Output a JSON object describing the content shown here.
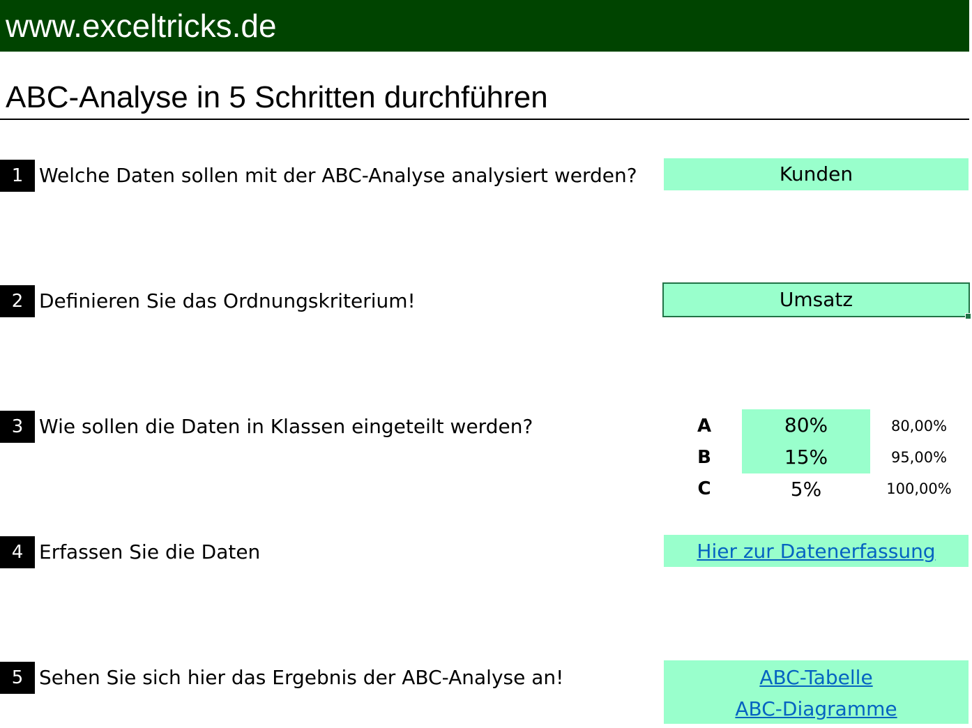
{
  "banner": {
    "text": "www.exceltricks.de"
  },
  "page_title": "ABC-Analyse in 5 Schritten durchführen",
  "steps": [
    {
      "num": "1",
      "question": "Welche Daten sollen mit der ABC-Analyse analysiert werden?",
      "answer": "Kunden"
    },
    {
      "num": "2",
      "question": "Definieren Sie das Ordnungskriterium!",
      "answer": "Umsatz"
    },
    {
      "num": "3",
      "question": "Wie sollen die Daten in Klassen eingeteilt werden?"
    },
    {
      "num": "4",
      "question": "Erfassen Sie die Daten",
      "link": "Hier zur Datenerfassung"
    },
    {
      "num": "5",
      "question": "Sehen Sie sich hier das Ergebnis der ABC-Analyse an!",
      "links": [
        "ABC-Tabelle",
        "ABC-Diagramme"
      ]
    }
  ],
  "classes": [
    {
      "letter": "A",
      "percent": "80%",
      "cumulative": "80,00%"
    },
    {
      "letter": "B",
      "percent": "15%",
      "cumulative": "95,00%"
    },
    {
      "letter": "C",
      "percent": "5%",
      "cumulative": "100,00%"
    }
  ],
  "colors": {
    "banner_bg": "#004400",
    "input_cell": "#99ffcc",
    "hyperlink": "#0563c1",
    "selection_border": "#217346"
  }
}
